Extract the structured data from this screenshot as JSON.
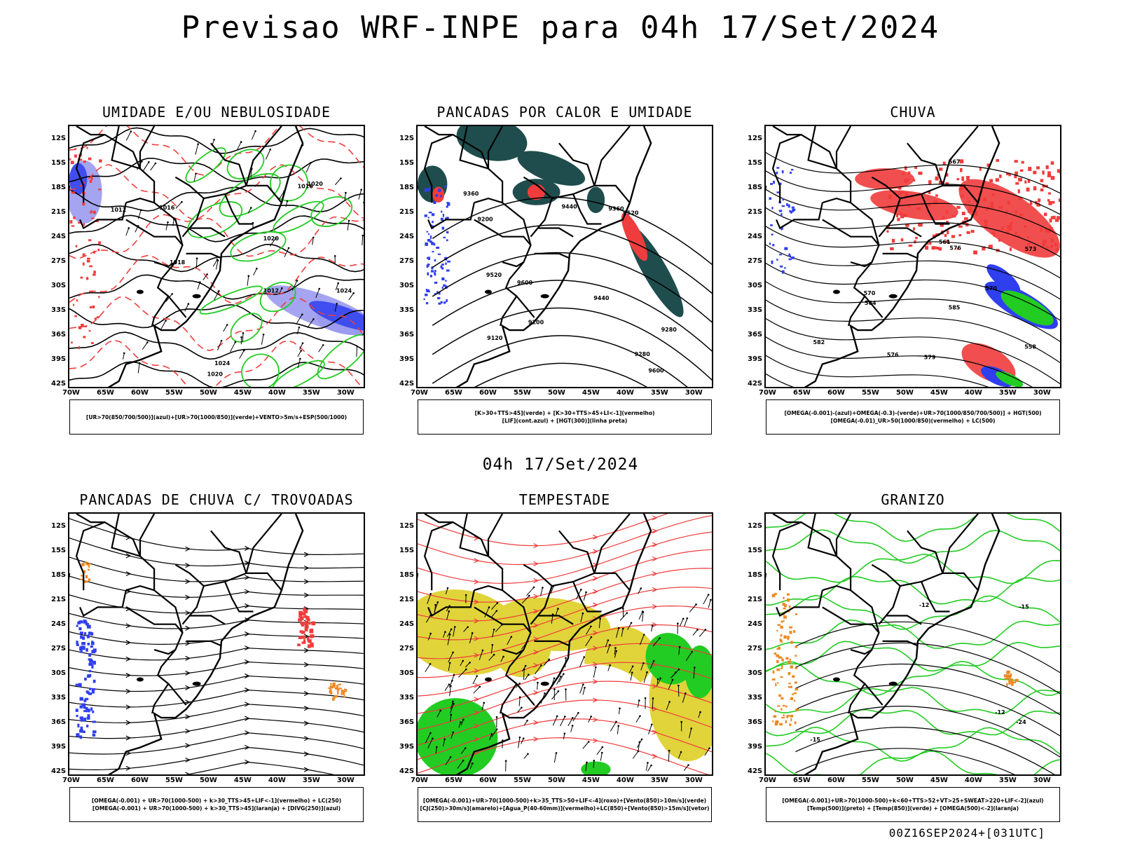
{
  "title": "Previsao WRF-INPE  para 04h 17/Set/2024",
  "mid_date": "04h 17/Set/2024",
  "footer_stamp": "00Z16SEP2024+[031UTC]",
  "lat_labels": [
    "12S",
    "15S",
    "18S",
    "21S",
    "24S",
    "27S",
    "30S",
    "33S",
    "36S",
    "39S",
    "42S"
  ],
  "lon_labels": [
    "70W",
    "65W",
    "60W",
    "55W",
    "50W",
    "45W",
    "40W",
    "35W",
    "30W"
  ],
  "colors": {
    "red": "#f03c3c",
    "green": "#22cc22",
    "blue": "#2f3fee",
    "teal": "#1f4d4d",
    "yellow": "#e0d43a",
    "orange": "#ee8822",
    "lavender": "#9a9aee"
  },
  "panels": [
    {
      "title": "UMIDADE E/OU NEBULOSIDADE",
      "legend": [
        "[UR>70(850/700/500)](azul)+[UR>70(1000/850)](verde)+VENTO>5m/s+ESP(500/1000)"
      ],
      "contour_labels": [
        "1012",
        "1016",
        "1020",
        "1024",
        "1016",
        "1020",
        "1012",
        "1018",
        "1020",
        "1024"
      ]
    },
    {
      "title": "PANCADAS POR CALOR E UMIDADE",
      "legend": [
        "[K>30+TTS>45](verde) + [K>30+TTS>45+LI<-1](vermelho)",
        "[LIF](cont.azul) + [HGT(300)](linha preta)"
      ],
      "contour_labels": [
        "9600",
        "9520",
        "9440",
        "9360",
        "9280",
        "9200",
        "9120",
        "9600",
        "9520",
        "9440",
        "9360",
        "9280",
        "9200"
      ]
    },
    {
      "title": "CHUVA",
      "legend": [
        "[OMEGA(-0.001)-(azul)+OMEGA(-0.3)-(verde)+UR>70(1000/850/700/500)] + HGT(500)",
        "[OMEGA(-0.01)_UR>50(1000/850)(vermelho) + LC(500)"
      ],
      "contour_labels": [
        "585",
        "582",
        "579",
        "576",
        "573",
        "570",
        "567",
        "564",
        "561",
        "558",
        "576",
        "570"
      ]
    },
    {
      "title": "PANCADAS DE CHUVA C/ TROVOADAS",
      "legend": [
        "[OMEGA(-0.001) + UR>70(1000-500) + k>30_TTS>45+LIF<-1](vermelho) + LC(250)",
        "[OMEGA(-0.001) + UR>70(1000-500) + k>30_TTS>45](laranja) + [DIVG(250)](azul)"
      ],
      "contour_labels": []
    },
    {
      "title": "TEMPESTADE",
      "legend": [
        "[OMEGA(-0.001)+UR>70(1000-500)+k>35_TTS>50+LIF<-4](roxo)+[Vento(850)>10m/s](verde)",
        "[CJ(250)>30m/s](amarelo)+[Agua_P(40-60mm)](vermelho)+LC(850)+[Vento(850)>15m/s](vetor)"
      ],
      "contour_labels": []
    },
    {
      "title": "GRANIZO",
      "legend": [
        "[OMEGA(-0.001)+UR>70(1000-500)+k<60+TTS>52+VT>25+SWEAT>220+LIF<-2](azul)",
        "[Temp(500)](preto) + [Temp(850)](verde) + [OMEGA(500)<-2](laranja)"
      ],
      "contour_labels": [
        "-12",
        "-15",
        "-24",
        "-12",
        "-15"
      ]
    }
  ]
}
